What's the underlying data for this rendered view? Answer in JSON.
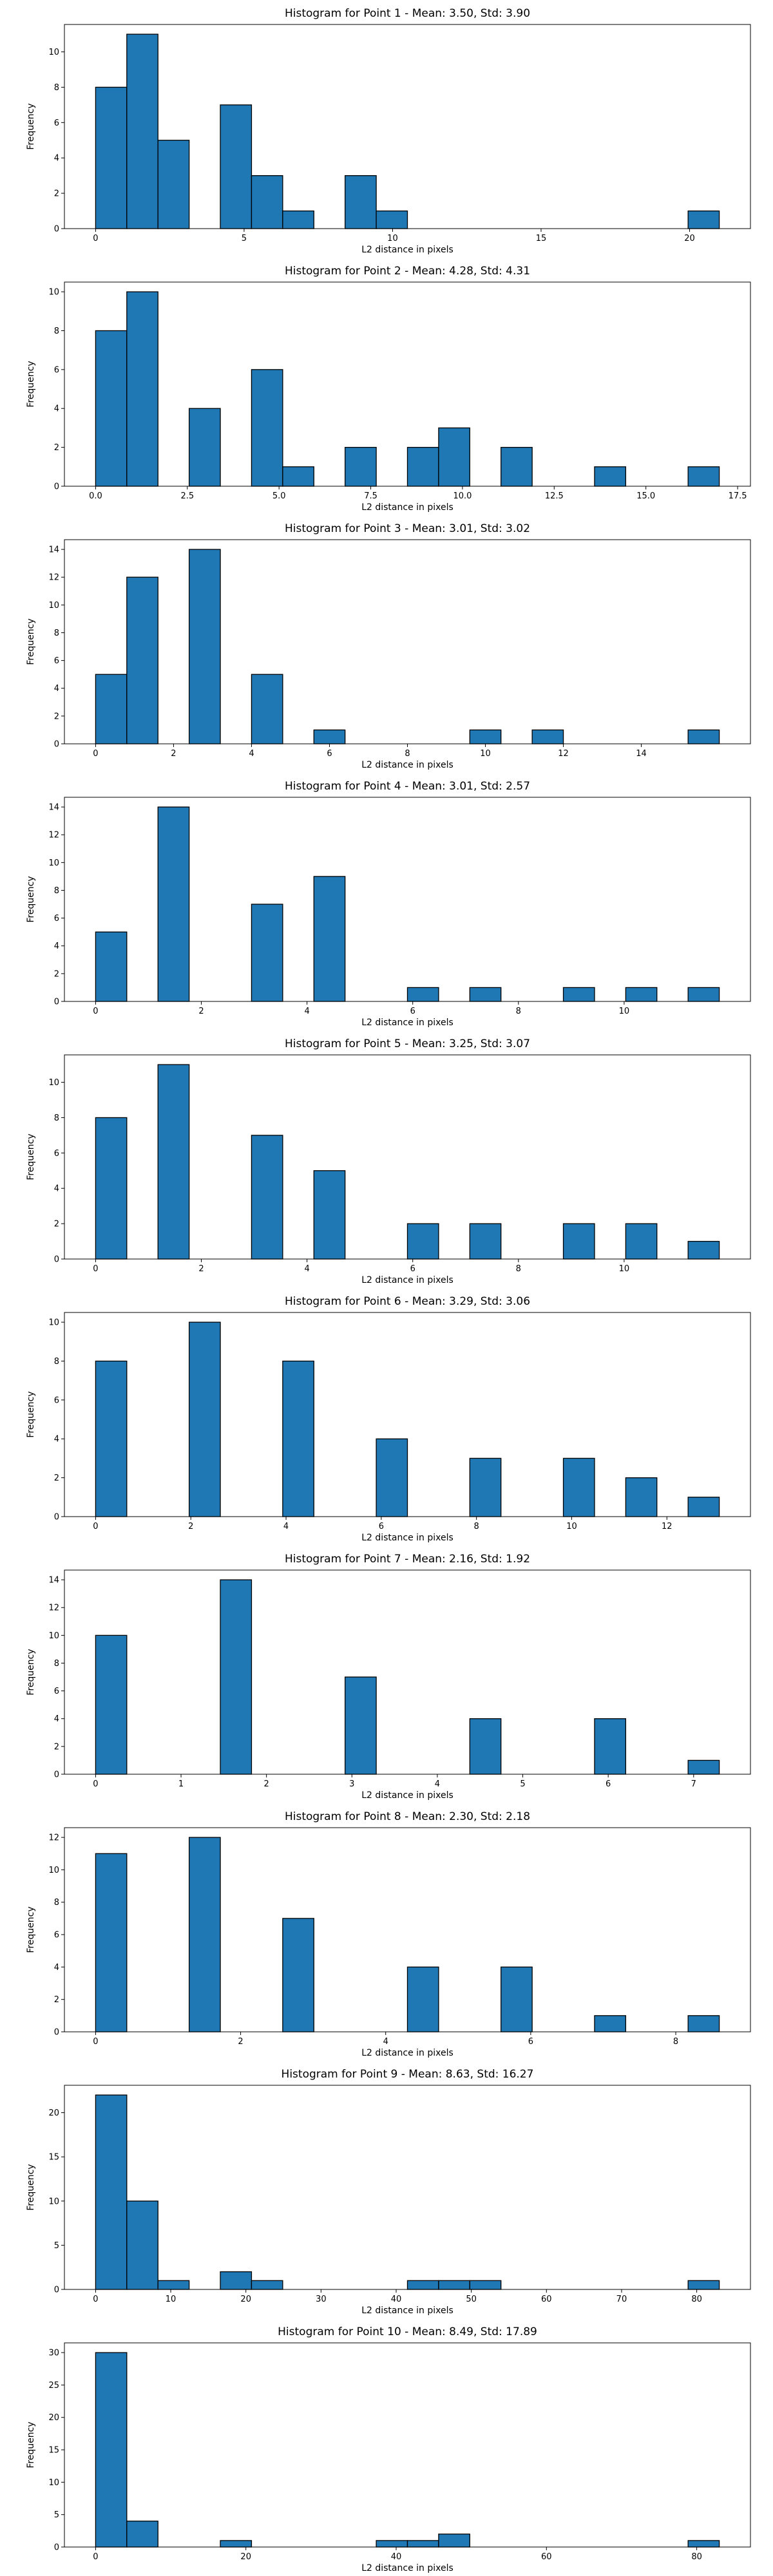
{
  "colors": {
    "bar_fill": "#1f77b4",
    "bar_edge": "#000000",
    "axis": "#000000",
    "background": "#ffffff"
  },
  "chart_data": [
    {
      "type": "bar",
      "title": "Histogram for Point 1 - Mean: 3.50, Std: 3.90",
      "xlabel": "L2 distance in pixels",
      "ylabel": "Frequency",
      "xlim": [
        -1.05,
        22.05
      ],
      "ylim": [
        0,
        11.55
      ],
      "xticks": [
        0,
        5,
        10,
        15,
        20
      ],
      "xtick_labels": [
        "0",
        "5",
        "10",
        "15",
        "20"
      ],
      "yticks": [
        0,
        2,
        4,
        6,
        8,
        10
      ],
      "ytick_labels": [
        "0",
        "2",
        "4",
        "6",
        "8",
        "10"
      ],
      "bin_start": 0,
      "bin_width": 1.05,
      "counts": [
        8,
        11,
        5,
        0,
        7,
        3,
        1,
        0,
        3,
        1,
        0,
        0,
        0,
        0,
        0,
        0,
        0,
        0,
        0,
        1
      ]
    },
    {
      "type": "bar",
      "title": "Histogram for Point 2 - Mean: 4.28, Std: 4.31",
      "xlabel": "L2 distance in pixels",
      "ylabel": "Frequency",
      "xlim": [
        -0.85,
        17.85
      ],
      "ylim": [
        0,
        10.5
      ],
      "xticks": [
        0,
        2.5,
        5,
        7.5,
        10,
        12.5,
        15,
        17.5
      ],
      "xtick_labels": [
        "0.0",
        "2.5",
        "5.0",
        "7.5",
        "10.0",
        "12.5",
        "15.0",
        "17.5"
      ],
      "yticks": [
        0,
        2,
        4,
        6,
        8,
        10
      ],
      "ytick_labels": [
        "0",
        "2",
        "4",
        "6",
        "8",
        "10"
      ],
      "bin_start": 0,
      "bin_width": 0.85,
      "counts": [
        8,
        10,
        0,
        4,
        0,
        6,
        1,
        0,
        2,
        0,
        2,
        3,
        0,
        2,
        0,
        0,
        1,
        0,
        0,
        1
      ]
    },
    {
      "type": "bar",
      "title": "Histogram for Point 3 - Mean: 3.01, Std: 3.02",
      "xlabel": "L2 distance in pixels",
      "ylabel": "Frequency",
      "xlim": [
        -0.8,
        16.8
      ],
      "ylim": [
        0,
        14.7
      ],
      "xticks": [
        0,
        2,
        4,
        6,
        8,
        10,
        12,
        14
      ],
      "xtick_labels": [
        "0",
        "2",
        "4",
        "6",
        "8",
        "10",
        "12",
        "14"
      ],
      "yticks": [
        0,
        2,
        4,
        6,
        8,
        10,
        12,
        14
      ],
      "ytick_labels": [
        "0",
        "2",
        "4",
        "6",
        "8",
        "10",
        "12",
        "14"
      ],
      "bin_start": 0,
      "bin_width": 0.8,
      "counts": [
        5,
        12,
        0,
        14,
        0,
        5,
        0,
        1,
        0,
        0,
        0,
        0,
        1,
        0,
        1,
        0,
        0,
        0,
        0,
        1
      ]
    },
    {
      "type": "bar",
      "title": "Histogram for Point 4 - Mean: 3.01, Std: 2.57",
      "xlabel": "L2 distance in pixels",
      "ylabel": "Frequency",
      "xlim": [
        -0.59,
        12.39
      ],
      "ylim": [
        0,
        14.7
      ],
      "xticks": [
        0,
        2,
        4,
        6,
        8,
        10
      ],
      "xtick_labels": [
        "0",
        "2",
        "4",
        "6",
        "8",
        "10"
      ],
      "yticks": [
        0,
        2,
        4,
        6,
        8,
        10,
        12,
        14
      ],
      "ytick_labels": [
        "0",
        "2",
        "4",
        "6",
        "8",
        "10",
        "12",
        "14"
      ],
      "bin_start": 0,
      "bin_width": 0.59,
      "counts": [
        5,
        0,
        14,
        0,
        0,
        7,
        0,
        9,
        0,
        0,
        1,
        0,
        1,
        0,
        0,
        1,
        0,
        1,
        0,
        1
      ]
    },
    {
      "type": "bar",
      "title": "Histogram for Point 5 - Mean: 3.25, Std: 3.07",
      "xlabel": "L2 distance in pixels",
      "ylabel": "Frequency",
      "xlim": [
        -0.59,
        12.39
      ],
      "ylim": [
        0,
        11.55
      ],
      "xticks": [
        0,
        2,
        4,
        6,
        8,
        10
      ],
      "xtick_labels": [
        "0",
        "2",
        "4",
        "6",
        "8",
        "10"
      ],
      "yticks": [
        0,
        2,
        4,
        6,
        8,
        10
      ],
      "ytick_labels": [
        "0",
        "2",
        "4",
        "6",
        "8",
        "10"
      ],
      "bin_start": 0,
      "bin_width": 0.59,
      "counts": [
        8,
        0,
        11,
        0,
        0,
        7,
        0,
        5,
        0,
        0,
        2,
        0,
        2,
        0,
        0,
        2,
        0,
        2,
        0,
        1
      ]
    },
    {
      "type": "bar",
      "title": "Histogram for Point 6 - Mean: 3.29, Std: 3.06",
      "xlabel": "L2 distance in pixels",
      "ylabel": "Frequency",
      "xlim": [
        -0.655,
        13.755
      ],
      "ylim": [
        0,
        10.5
      ],
      "xticks": [
        0,
        2,
        4,
        6,
        8,
        10,
        12
      ],
      "xtick_labels": [
        "0",
        "2",
        "4",
        "6",
        "8",
        "10",
        "12"
      ],
      "yticks": [
        0,
        2,
        4,
        6,
        8,
        10
      ],
      "ytick_labels": [
        "0",
        "2",
        "4",
        "6",
        "8",
        "10"
      ],
      "bin_start": 0,
      "bin_width": 0.655,
      "counts": [
        8,
        0,
        0,
        10,
        0,
        0,
        8,
        0,
        0,
        4,
        0,
        0,
        3,
        0,
        0,
        3,
        0,
        2,
        0,
        1,
        0,
        0,
        0,
        0,
        0
      ]
    },
    {
      "type": "bar",
      "title": "Histogram for Point 7 - Mean: 2.16, Std: 1.92",
      "xlabel": "L2 distance in pixels",
      "ylabel": "Frequency",
      "xlim": [
        -0.365,
        7.665
      ],
      "ylim": [
        0,
        14.7
      ],
      "xticks": [
        0,
        1,
        2,
        3,
        4,
        5,
        6,
        7
      ],
      "xtick_labels": [
        "0",
        "1",
        "2",
        "3",
        "4",
        "5",
        "6",
        "7"
      ],
      "yticks": [
        0,
        2,
        4,
        6,
        8,
        10,
        12,
        14
      ],
      "ytick_labels": [
        "0",
        "2",
        "4",
        "6",
        "8",
        "10",
        "12",
        "14"
      ],
      "bin_start": 0,
      "bin_width": 0.365,
      "counts": [
        10,
        0,
        0,
        0,
        14,
        0,
        0,
        0,
        7,
        0,
        0,
        0,
        4,
        0,
        0,
        0,
        4,
        0,
        0,
        1
      ]
    },
    {
      "type": "bar",
      "title": "Histogram for Point 8 - Mean: 2.30, Std: 2.18",
      "xlabel": "L2 distance in pixels",
      "ylabel": "Frequency",
      "xlim": [
        -0.43,
        9.03
      ],
      "ylim": [
        0,
        12.6
      ],
      "xticks": [
        0,
        2,
        4,
        6,
        8
      ],
      "xtick_labels": [
        "0",
        "2",
        "4",
        "6",
        "8"
      ],
      "yticks": [
        0,
        2,
        4,
        6,
        8,
        10,
        12
      ],
      "ytick_labels": [
        "0",
        "2",
        "4",
        "6",
        "8",
        "10",
        "12"
      ],
      "bin_start": 0,
      "bin_width": 0.43,
      "counts": [
        11,
        0,
        0,
        12,
        0,
        0,
        7,
        0,
        0,
        0,
        4,
        0,
        0,
        4,
        0,
        0,
        1,
        0,
        0,
        1
      ]
    },
    {
      "type": "bar",
      "title": "Histogram for Point 9 - Mean: 8.63, Std: 16.27",
      "xlabel": "L2 distance in pixels",
      "ylabel": "Frequency",
      "xlim": [
        -4.15,
        87.15
      ],
      "ylim": [
        0,
        23.1
      ],
      "xticks": [
        0,
        10,
        20,
        30,
        40,
        50,
        60,
        70,
        80
      ],
      "xtick_labels": [
        "0",
        "10",
        "20",
        "30",
        "40",
        "50",
        "60",
        "70",
        "80"
      ],
      "yticks": [
        0,
        5,
        10,
        15,
        20
      ],
      "ytick_labels": [
        "0",
        "5",
        "10",
        "15",
        "20"
      ],
      "bin_start": 0,
      "bin_width": 4.15,
      "counts": [
        22,
        10,
        1,
        0,
        2,
        1,
        0,
        0,
        0,
        0,
        1,
        1,
        1,
        0,
        0,
        0,
        0,
        0,
        0,
        1
      ]
    },
    {
      "type": "bar",
      "title": "Histogram for Point 10 - Mean: 8.49, Std: 17.89",
      "xlabel": "L2 distance in pixels",
      "ylabel": "Frequency",
      "xlim": [
        -4.15,
        87.15
      ],
      "ylim": [
        0,
        31.5
      ],
      "xticks": [
        0,
        20,
        40,
        60,
        80
      ],
      "xtick_labels": [
        "0",
        "20",
        "40",
        "60",
        "80"
      ],
      "yticks": [
        0,
        5,
        10,
        15,
        20,
        25,
        30
      ],
      "ytick_labels": [
        "0",
        "5",
        "10",
        "15",
        "20",
        "25",
        "30"
      ],
      "bin_start": 0,
      "bin_width": 4.15,
      "counts": [
        30,
        4,
        0,
        0,
        1,
        0,
        0,
        0,
        0,
        1,
        1,
        2,
        0,
        0,
        0,
        0,
        0,
        0,
        0,
        1
      ]
    }
  ]
}
